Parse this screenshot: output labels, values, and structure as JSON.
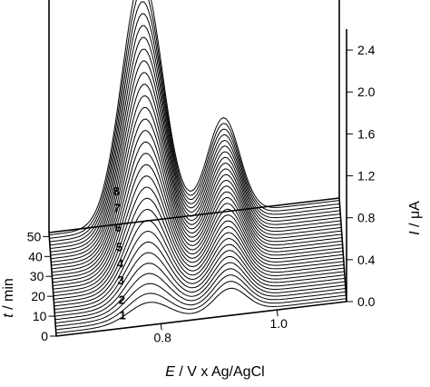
{
  "chart_data": {
    "type": "line",
    "title": "",
    "xlabel_italic": "E",
    "xlabel_rest": " / V x Ag/AgCl",
    "ylabel_italic": "t",
    "ylabel_rest": " / min",
    "zlabel_italic": "I",
    "zlabel_rest": " / μA",
    "x_ticks": [
      {
        "value": 0.8,
        "label": "0.8"
      },
      {
        "value": 1.0,
        "label": "1.0"
      }
    ],
    "t_ticks": [
      {
        "value": 0,
        "label": "0"
      },
      {
        "value": 10,
        "label": "10"
      },
      {
        "value": 20,
        "label": "20"
      },
      {
        "value": 30,
        "label": "30"
      },
      {
        "value": 40,
        "label": "40"
      },
      {
        "value": 50,
        "label": "50"
      }
    ],
    "z_ticks": [
      {
        "value": 0.0,
        "label": "0.0"
      },
      {
        "value": 0.4,
        "label": "0.4"
      },
      {
        "value": 0.8,
        "label": "0.8"
      },
      {
        "value": 1.2,
        "label": "1.2"
      },
      {
        "value": 1.6,
        "label": "1.6"
      },
      {
        "value": 2.0,
        "label": "2.0"
      },
      {
        "value": 2.4,
        "label": "2.4"
      }
    ],
    "x_range": [
      0.62,
      1.12
    ],
    "t_range": [
      0,
      52
    ],
    "z_range": [
      0,
      2.6
    ],
    "n_curves": 30,
    "t_step_min": 1.7,
    "peak1": {
      "center_V": 0.78,
      "width_V": 0.035,
      "max_uA": 2.35
    },
    "peak2": {
      "center_V": 0.92,
      "width_V": 0.028,
      "max_uA": 0.92
    },
    "curve_labels": [
      {
        "label": "1",
        "t": 2.5
      },
      {
        "label": "2",
        "t": 8
      },
      {
        "label": "3",
        "t": 15
      },
      {
        "label": "4",
        "t": 21
      },
      {
        "label": "5",
        "t": 27
      },
      {
        "label": "6",
        "t": 34
      },
      {
        "label": "7",
        "t": 41
      },
      {
        "label": "8",
        "t": 47
      }
    ]
  }
}
